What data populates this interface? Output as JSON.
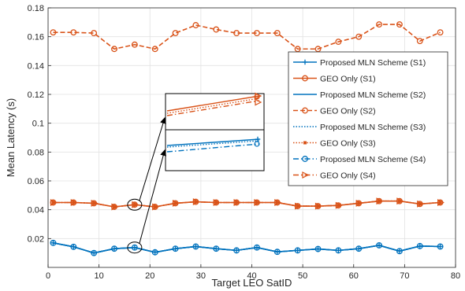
{
  "chart_data": {
    "type": "line",
    "xlabel": "Target LEO SatID",
    "ylabel": "Mean Latency (s)",
    "xlim": [
      0,
      80
    ],
    "ylim": [
      0,
      0.18
    ],
    "x_ticks": [
      "0",
      "10",
      "20",
      "30",
      "40",
      "50",
      "60",
      "70",
      "80"
    ],
    "y_ticks": [
      "0.02",
      "0.04",
      "0.06",
      "0.08",
      "0.1",
      "0.12",
      "0.14",
      "0.16",
      "0.18"
    ],
    "grid": true,
    "legend_position": "right",
    "x": [
      1,
      5,
      9,
      13,
      17,
      21,
      25,
      29,
      33,
      37,
      41,
      45,
      49,
      53,
      57,
      61,
      65,
      69,
      73,
      77
    ],
    "series": [
      {
        "name": "Proposed MLN Scheme (S1)",
        "color": "#0072BD",
        "line": "solid",
        "marker": "plus",
        "values": [
          0.017,
          0.0143,
          0.01,
          0.013,
          0.0138,
          0.0105,
          0.013,
          0.0145,
          0.013,
          0.0118,
          0.0138,
          0.0108,
          0.0118,
          0.0128,
          0.0118,
          0.013,
          0.0153,
          0.0113,
          0.0148,
          0.0145
        ]
      },
      {
        "name": "GEO Only (S1)",
        "color": "#D95319",
        "line": "solid",
        "marker": "circle",
        "values": [
          0.045,
          0.045,
          0.0445,
          0.042,
          0.0435,
          0.042,
          0.0445,
          0.0455,
          0.045,
          0.045,
          0.045,
          0.045,
          0.0425,
          0.0425,
          0.043,
          0.0445,
          0.046,
          0.046,
          0.044,
          0.045
        ]
      },
      {
        "name": "Proposed MLN Scheme (S2)",
        "color": "#0072BD",
        "line": "solid",
        "marker": "none",
        "values": [
          0.017,
          0.0143,
          0.01,
          0.013,
          0.0138,
          0.0105,
          0.013,
          0.0145,
          0.013,
          0.0118,
          0.0138,
          0.0108,
          0.0118,
          0.0128,
          0.0118,
          0.013,
          0.0153,
          0.0113,
          0.0148,
          0.0145
        ]
      },
      {
        "name": "GEO Only (S2)",
        "color": "#D95319",
        "line": "dashed",
        "marker": "circle",
        "values": [
          0.163,
          0.163,
          0.1625,
          0.1515,
          0.1545,
          0.1515,
          0.1625,
          0.168,
          0.165,
          0.1625,
          0.1625,
          0.1625,
          0.1515,
          0.1515,
          0.1565,
          0.16,
          0.1685,
          0.1685,
          0.157,
          0.163
        ]
      },
      {
        "name": "Proposed MLN Scheme (S3)",
        "color": "#0072BD",
        "line": "dotted",
        "marker": "none",
        "values": [
          0.017,
          0.0143,
          0.01,
          0.013,
          0.0138,
          0.0105,
          0.013,
          0.0145,
          0.013,
          0.0118,
          0.0138,
          0.0108,
          0.0118,
          0.0128,
          0.0118,
          0.013,
          0.0153,
          0.0113,
          0.0148,
          0.0145
        ]
      },
      {
        "name": "GEO Only (S3)",
        "color": "#D95319",
        "line": "dotted",
        "marker": "square",
        "values": [
          0.045,
          0.045,
          0.0445,
          0.042,
          0.0435,
          0.042,
          0.0445,
          0.0455,
          0.045,
          0.045,
          0.045,
          0.045,
          0.0425,
          0.0425,
          0.043,
          0.0445,
          0.046,
          0.046,
          0.044,
          0.045
        ]
      },
      {
        "name": "Proposed MLN Scheme (S4)",
        "color": "#0072BD",
        "line": "dashdot",
        "marker": "circle",
        "values": [
          0.017,
          0.0143,
          0.01,
          0.013,
          0.0138,
          0.0105,
          0.013,
          0.0145,
          0.013,
          0.0118,
          0.0138,
          0.0108,
          0.0118,
          0.0128,
          0.0118,
          0.013,
          0.0153,
          0.0113,
          0.0148,
          0.0145
        ]
      },
      {
        "name": "GEO Only (S4)",
        "color": "#D95319",
        "line": "dashdot",
        "marker": "triangle-right",
        "values": [
          0.045,
          0.045,
          0.0445,
          0.042,
          0.0435,
          0.042,
          0.0445,
          0.0455,
          0.045,
          0.045,
          0.045,
          0.045,
          0.0425,
          0.0425,
          0.043,
          0.0445,
          0.046,
          0.046,
          0.044,
          0.045
        ]
      }
    ],
    "annotations": [
      {
        "type": "zoom-inset",
        "target_x": 17,
        "target_y": 0.0435,
        "shows": "GEO Only"
      },
      {
        "type": "zoom-inset",
        "target_x": 17,
        "target_y": 0.0138,
        "shows": "Proposed MLN Scheme"
      }
    ]
  }
}
